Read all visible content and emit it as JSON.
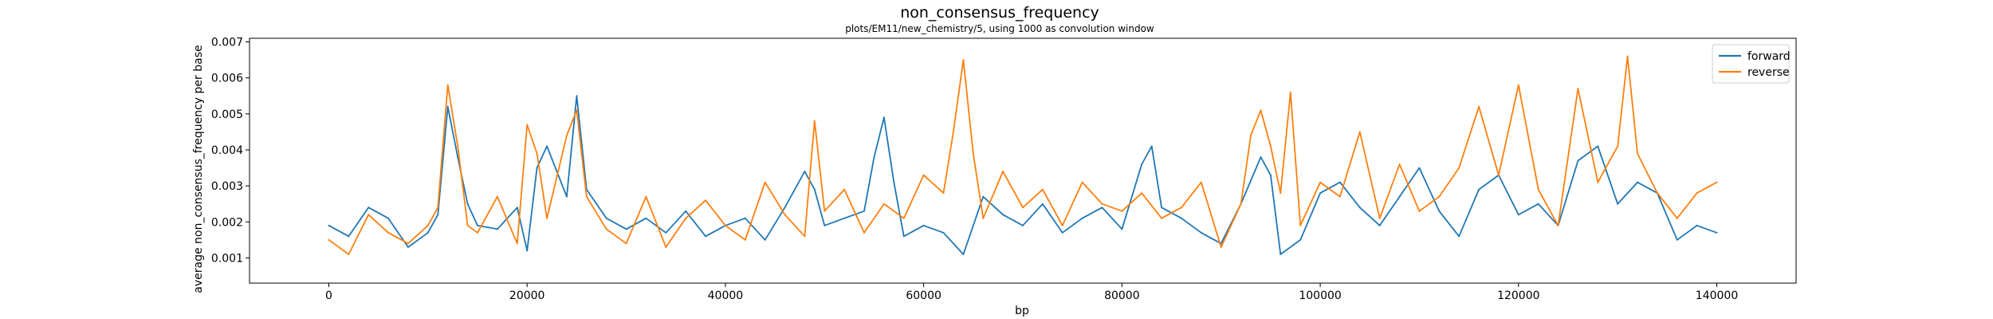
{
  "chart_data": {
    "type": "line",
    "title": "non_consensus_frequency",
    "subtitle": "plots/EM11/new_chemistry/5, using 1000 as convolution window",
    "xlabel": "bp",
    "ylabel": "average non_consensus_frequency per base",
    "xlim": [
      -8000,
      148000
    ],
    "ylim": [
      0.0003,
      0.0071
    ],
    "x_ticks": [
      0,
      20000,
      40000,
      60000,
      80000,
      100000,
      120000,
      140000
    ],
    "x_tick_labels": [
      "0",
      "20000",
      "40000",
      "60000",
      "80000",
      "100000",
      "120000",
      "140000"
    ],
    "y_ticks": [
      0.001,
      0.002,
      0.003,
      0.004,
      0.005,
      0.006,
      0.007
    ],
    "y_tick_labels": [
      "0.001",
      "0.002",
      "0.003",
      "0.004",
      "0.005",
      "0.006",
      "0.007"
    ],
    "grid": false,
    "legend_position": "top-right",
    "colors": {
      "forward": "#1f77b4",
      "reverse": "#ff7f0e"
    },
    "series": [
      {
        "name": "forward",
        "color": "#1f77b4",
        "x": [
          0,
          2000,
          4000,
          6000,
          8000,
          10000,
          11000,
          12000,
          13000,
          14000,
          15000,
          17000,
          19000,
          20000,
          21000,
          22000,
          24000,
          25000,
          26000,
          28000,
          30000,
          32000,
          34000,
          36000,
          38000,
          40000,
          42000,
          44000,
          46000,
          48000,
          49000,
          50000,
          52000,
          54000,
          55000,
          56000,
          57000,
          58000,
          60000,
          62000,
          64000,
          66000,
          68000,
          70000,
          72000,
          74000,
          76000,
          78000,
          80000,
          82000,
          83000,
          84000,
          86000,
          88000,
          90000,
          92000,
          94000,
          95000,
          96000,
          98000,
          100000,
          102000,
          104000,
          106000,
          108000,
          110000,
          112000,
          114000,
          116000,
          118000,
          120000,
          122000,
          124000,
          126000,
          128000,
          130000,
          132000,
          134000,
          136000,
          138000,
          140000
        ],
        "y": [
          0.0019,
          0.0016,
          0.0024,
          0.0021,
          0.0013,
          0.0017,
          0.0022,
          0.0052,
          0.0038,
          0.0025,
          0.0019,
          0.0018,
          0.0024,
          0.0012,
          0.0035,
          0.0041,
          0.0027,
          0.0055,
          0.0029,
          0.0021,
          0.0018,
          0.0021,
          0.0017,
          0.0023,
          0.0016,
          0.0019,
          0.0021,
          0.0015,
          0.0024,
          0.0034,
          0.0029,
          0.0019,
          0.0021,
          0.0023,
          0.0038,
          0.0049,
          0.0031,
          0.0016,
          0.0019,
          0.0017,
          0.0011,
          0.0027,
          0.0022,
          0.0019,
          0.0025,
          0.0017,
          0.0021,
          0.0024,
          0.0018,
          0.0036,
          0.0041,
          0.0024,
          0.0021,
          0.0017,
          0.0014,
          0.0025,
          0.0038,
          0.0033,
          0.0011,
          0.0015,
          0.0028,
          0.0031,
          0.0024,
          0.0019,
          0.0027,
          0.0035,
          0.0023,
          0.0016,
          0.0029,
          0.0033,
          0.0022,
          0.0025,
          0.0019,
          0.0037,
          0.0041,
          0.0025,
          0.0031,
          0.0028,
          0.0015,
          0.0019,
          0.0017
        ]
      },
      {
        "name": "reverse",
        "color": "#ff7f0e",
        "x": [
          0,
          2000,
          4000,
          6000,
          8000,
          10000,
          11000,
          12000,
          13000,
          14000,
          15000,
          17000,
          19000,
          20000,
          21000,
          22000,
          24000,
          25000,
          26000,
          28000,
          30000,
          32000,
          34000,
          36000,
          38000,
          40000,
          42000,
          44000,
          46000,
          48000,
          49000,
          50000,
          52000,
          54000,
          56000,
          58000,
          60000,
          62000,
          63000,
          64000,
          65000,
          66000,
          68000,
          70000,
          72000,
          74000,
          76000,
          78000,
          80000,
          82000,
          84000,
          86000,
          88000,
          90000,
          92000,
          93000,
          94000,
          95000,
          96000,
          97000,
          98000,
          100000,
          102000,
          104000,
          106000,
          108000,
          110000,
          112000,
          114000,
          116000,
          118000,
          120000,
          122000,
          124000,
          126000,
          128000,
          130000,
          131000,
          132000,
          134000,
          136000,
          138000,
          140000
        ],
        "y": [
          0.0015,
          0.0011,
          0.0022,
          0.0017,
          0.0014,
          0.0019,
          0.0024,
          0.0058,
          0.0041,
          0.0019,
          0.0017,
          0.0027,
          0.0014,
          0.0047,
          0.0039,
          0.0021,
          0.0044,
          0.0051,
          0.0027,
          0.0018,
          0.0014,
          0.0027,
          0.0013,
          0.0021,
          0.0026,
          0.0019,
          0.0015,
          0.0031,
          0.0022,
          0.0016,
          0.0048,
          0.0023,
          0.0029,
          0.0017,
          0.0025,
          0.0021,
          0.0033,
          0.0028,
          0.0045,
          0.0065,
          0.0039,
          0.0021,
          0.0034,
          0.0024,
          0.0029,
          0.0019,
          0.0031,
          0.0025,
          0.0023,
          0.0028,
          0.0021,
          0.0024,
          0.0031,
          0.0013,
          0.0025,
          0.0044,
          0.0051,
          0.0041,
          0.0028,
          0.0056,
          0.0019,
          0.0031,
          0.0027,
          0.0045,
          0.0021,
          0.0036,
          0.0023,
          0.0027,
          0.0035,
          0.0052,
          0.0033,
          0.0058,
          0.0029,
          0.0019,
          0.0057,
          0.0031,
          0.0041,
          0.0066,
          0.0039,
          0.0028,
          0.0021,
          0.0028,
          0.0031
        ]
      }
    ]
  }
}
